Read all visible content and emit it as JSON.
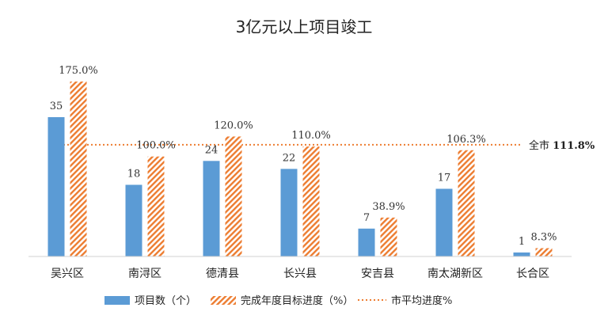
{
  "chart_data": {
    "type": "bar",
    "title": "3亿元以上项目竣工",
    "categories": [
      "吴兴区",
      "南浔区",
      "德清县",
      "长兴县",
      "安吉县",
      "南太湖新区",
      "长合区"
    ],
    "series": [
      {
        "name": "项目数（个）",
        "values": [
          35,
          18,
          24,
          22,
          7,
          17,
          1
        ],
        "labels": [
          "35",
          "18",
          "24",
          "22",
          "7",
          "17",
          "1"
        ],
        "color": "#5b9bd5",
        "style": "solid"
      },
      {
        "name": "完成年度目标进度（%）",
        "values": [
          175.0,
          100.0,
          120.0,
          110.0,
          38.9,
          106.3,
          8.3
        ],
        "labels": [
          "175.0%",
          "100.0%",
          "120.0%",
          "110.0%",
          "38.9%",
          "106.3%",
          "8.3%"
        ],
        "color": "#ed7d31",
        "style": "hatched"
      }
    ],
    "reference_line": {
      "name": "市平均进度%",
      "value": 111.8,
      "label_prefix": "全市",
      "label_value": "111.8%",
      "color": "#ed7d31",
      "style": "dotted"
    },
    "legend_position": "bottom",
    "grid": false
  }
}
